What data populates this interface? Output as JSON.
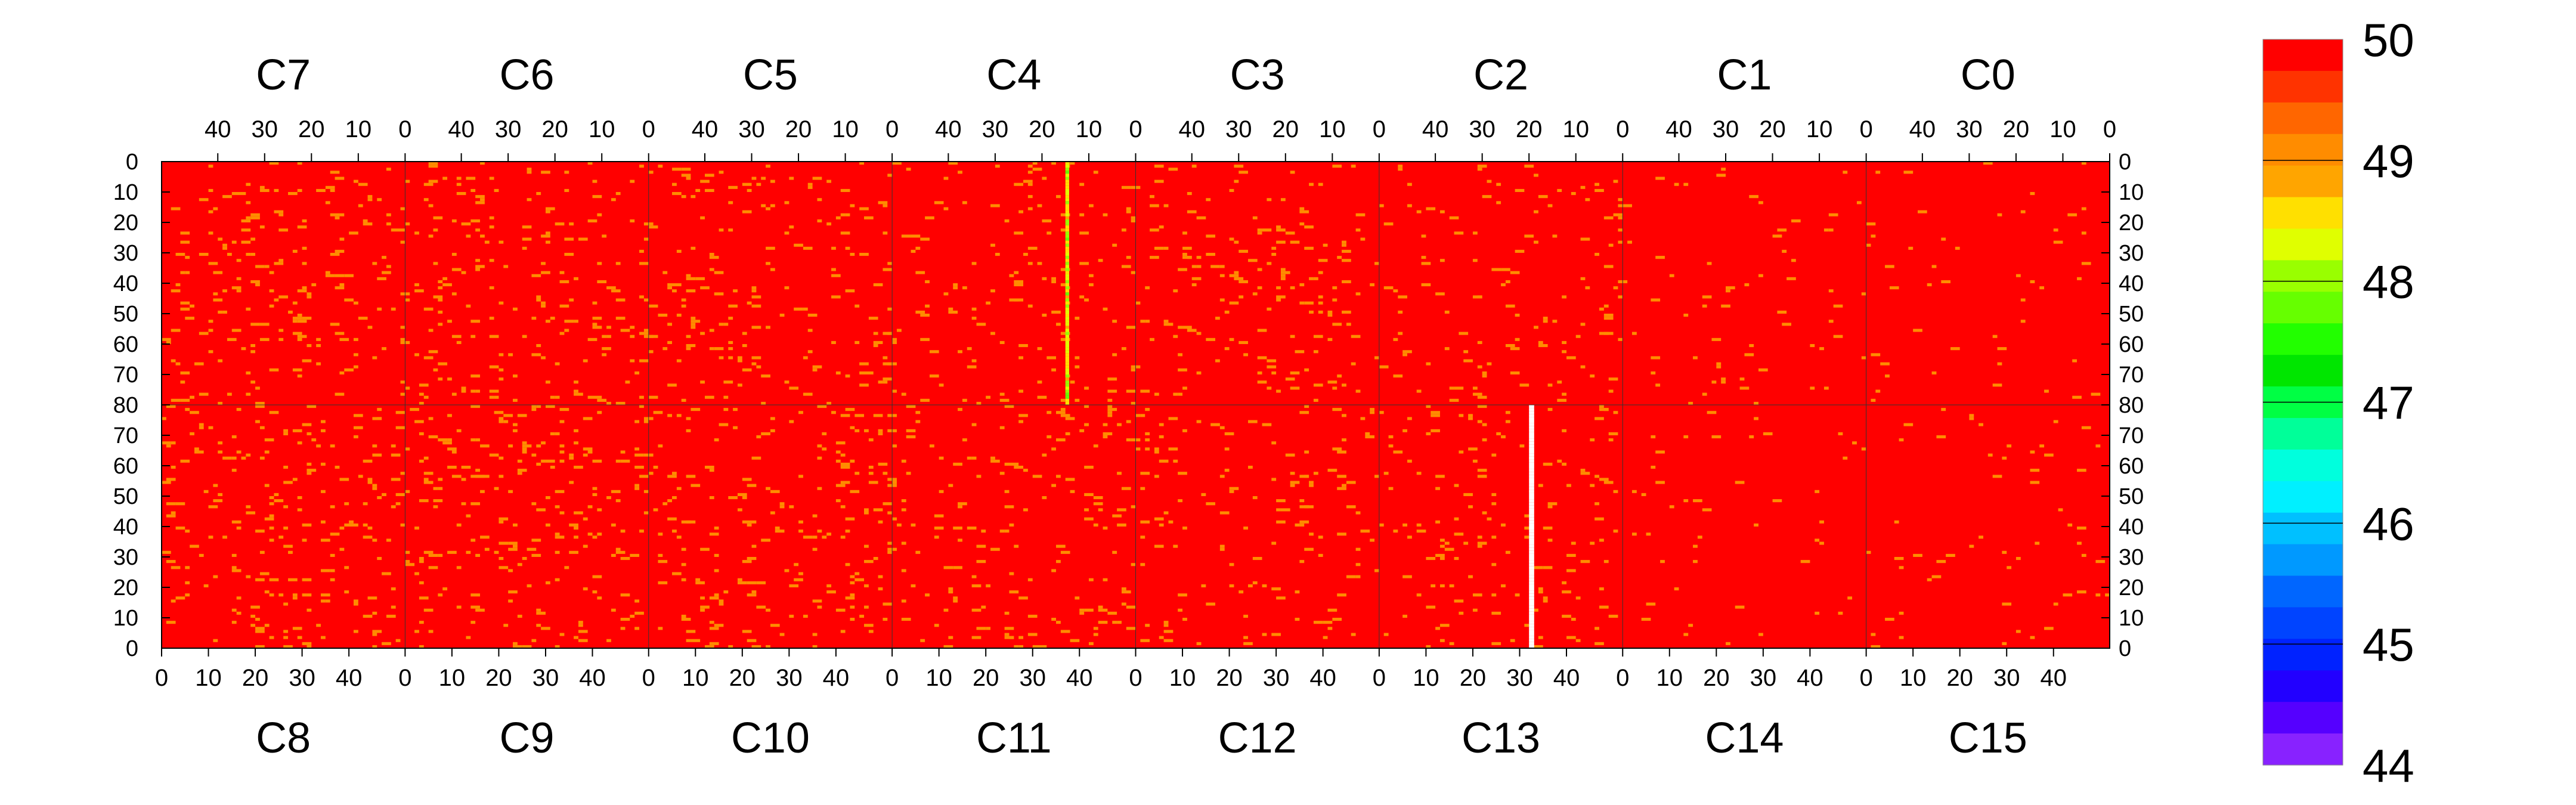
{
  "chart_data": {
    "type": "heatmap",
    "title": "",
    "xlabel": "",
    "ylabel": "",
    "top_panels": [
      {
        "label": "C7",
        "x_ticks": [
          "40",
          "30",
          "20",
          "10",
          "0"
        ]
      },
      {
        "label": "C6",
        "x_ticks": [
          "40",
          "30",
          "20",
          "10",
          "0"
        ]
      },
      {
        "label": "C5",
        "x_ticks": [
          "40",
          "30",
          "20",
          "10",
          "0"
        ]
      },
      {
        "label": "C4",
        "x_ticks": [
          "40",
          "30",
          "20",
          "10",
          "0"
        ]
      },
      {
        "label": "C3",
        "x_ticks": [
          "40",
          "30",
          "20",
          "10",
          "0"
        ]
      },
      {
        "label": "C2",
        "x_ticks": [
          "40",
          "30",
          "20",
          "10",
          "0"
        ]
      },
      {
        "label": "C1",
        "x_ticks": [
          "40",
          "30",
          "20",
          "10",
          "0"
        ]
      },
      {
        "label": "C0",
        "x_ticks": [
          "40",
          "30",
          "20",
          "10",
          "0"
        ]
      }
    ],
    "bottom_panels": [
      {
        "label": "C8",
        "x_ticks": [
          "0",
          "10",
          "20",
          "30",
          "40"
        ]
      },
      {
        "label": "C9",
        "x_ticks": [
          "0",
          "10",
          "20",
          "30",
          "40"
        ]
      },
      {
        "label": "C10",
        "x_ticks": [
          "0",
          "10",
          "20",
          "30",
          "40"
        ]
      },
      {
        "label": "C11",
        "x_ticks": [
          "0",
          "10",
          "20",
          "30",
          "40"
        ]
      },
      {
        "label": "C12",
        "x_ticks": [
          "0",
          "10",
          "20",
          "30",
          "40"
        ]
      },
      {
        "label": "C13",
        "x_ticks": [
          "0",
          "10",
          "20",
          "30",
          "40"
        ]
      },
      {
        "label": "C14",
        "x_ticks": [
          "0",
          "10",
          "20",
          "30",
          "40"
        ]
      },
      {
        "label": "C15",
        "x_ticks": [
          "0",
          "10",
          "20",
          "30",
          "40"
        ]
      }
    ],
    "columns_per_panel": 52,
    "rows_per_half": 80,
    "x_range_per_panel": [
      0,
      52
    ],
    "y_range_per_half": [
      0,
      80
    ],
    "y_ticks_top": [
      "0",
      "10",
      "20",
      "30",
      "40",
      "50",
      "60",
      "70",
      "80"
    ],
    "y_ticks_bottom": [
      "80",
      "70",
      "60",
      "50",
      "40",
      "30",
      "20",
      "10",
      "0"
    ],
    "z_range": [
      44,
      50
    ],
    "dominant_value": 50,
    "scattered_values": [
      49
    ],
    "scattered_fraction_by_panel": {
      "top": [
        0.045,
        0.04,
        0.04,
        0.03,
        0.035,
        0.03,
        0.012,
        0.014
      ],
      "bottom": [
        0.045,
        0.05,
        0.045,
        0.035,
        0.035,
        0.028,
        0.013,
        0.014
      ]
    },
    "features": [
      {
        "panel": "C4",
        "column": 37,
        "rows": [
          0,
          80
        ],
        "values": [
          47.8,
          48.8
        ],
        "note": "low-value stripe"
      },
      {
        "panel": "C13",
        "column": 32,
        "rows": [
          0,
          80
        ],
        "value": null,
        "note": "missing data (white)"
      }
    ],
    "colorbar": {
      "min": 44,
      "max": 50,
      "tick_labels": [
        "50",
        "49",
        "48",
        "47",
        "46",
        "45",
        "44"
      ],
      "tick_values": [
        50,
        49,
        48,
        47,
        46,
        45,
        44
      ],
      "colors": [
        "#ff0000",
        "#ff3300",
        "#ff6600",
        "#ff8c00",
        "#ffa500",
        "#ffe000",
        "#e0ff00",
        "#99ff00",
        "#66ff00",
        "#22ff00",
        "#00e600",
        "#00ff44",
        "#00ff99",
        "#00ffdd",
        "#00f0ff",
        "#00c0ff",
        "#0099ff",
        "#0066ff",
        "#0044ff",
        "#0022ff",
        "#2200ff",
        "#5500ff",
        "#8822ff"
      ]
    },
    "grid": false,
    "legend_placement": "right"
  }
}
